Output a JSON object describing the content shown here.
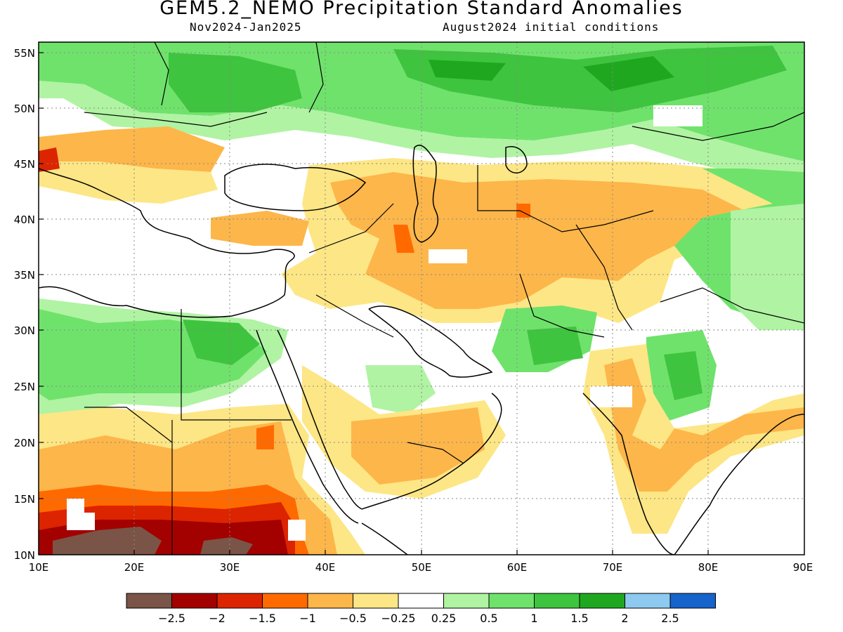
{
  "header": {
    "title": "GEM5.2_NEMO Precipitation Standard Anomalies",
    "period": "Nov2024-Jan2025",
    "init": "August2024 initial conditions"
  },
  "axes": {
    "lat_ticks": [
      "55N",
      "50N",
      "45N",
      "40N",
      "35N",
      "30N",
      "25N",
      "20N",
      "15N",
      "10N"
    ],
    "lon_ticks": [
      "10E",
      "20E",
      "30E",
      "40E",
      "50E",
      "60E",
      "70E",
      "80E",
      "90E"
    ],
    "lon_range": [
      10,
      90
    ],
    "lat_range": [
      10,
      56.5
    ],
    "grid": "dotted"
  },
  "legend": {
    "colors": [
      "#7a5447",
      "#a30000",
      "#dc2400",
      "#ff6a00",
      "#fdb64a",
      "#fde685",
      "#ffffff",
      "#b0f3a3",
      "#6fe26c",
      "#3ec43e",
      "#1fa81f",
      "#8ec9f0",
      "#1763cc"
    ],
    "labels": [
      "-2.5",
      "-2",
      "-1.5",
      "-1",
      "-0.5",
      "-0.25",
      "0.25",
      "0.5",
      "1",
      "1.5",
      "2",
      "2.5"
    ]
  },
  "palette": {
    "brown": "#7a5447",
    "darkred": "#a30000",
    "red": "#dc2400",
    "orange": "#ff6a00",
    "lightorange": "#fdb64a",
    "yellow": "#fde685",
    "lightgreen": "#b0f3a3",
    "green": "#6fe26c",
    "midgreen": "#3ec43e",
    "darkgreen": "#1fa81f"
  }
}
